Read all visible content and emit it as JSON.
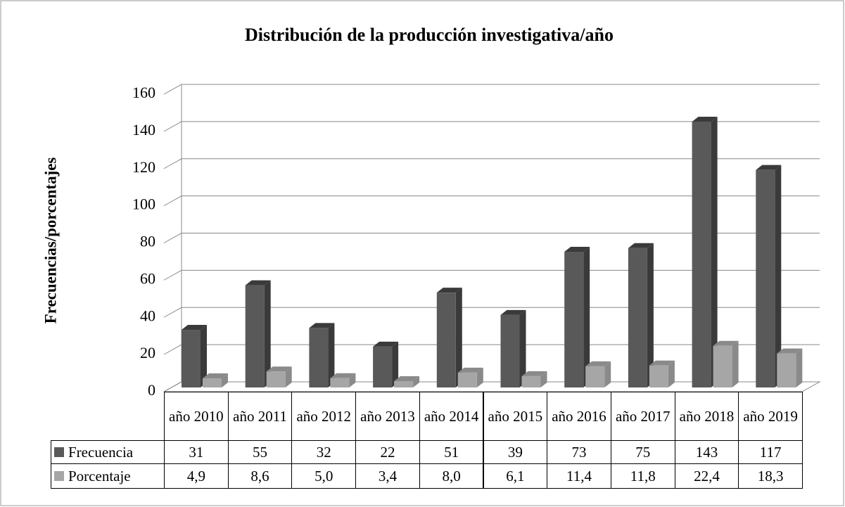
{
  "chart_data": {
    "type": "bar3d",
    "title": "Distribución de la producción investigativa/año",
    "y_label": "Frecuencias/porcentajes",
    "categories": [
      "año 2010",
      "año 2011",
      "año 2012",
      "año 2013",
      "año 2014",
      "año 2015",
      "año 2016",
      "año 2017",
      "año 2018",
      "año 2019"
    ],
    "series": [
      {
        "name": "Frecuencia",
        "color": "#595959",
        "values": [
          31,
          55,
          32,
          22,
          51,
          39,
          73,
          75,
          143,
          117
        ]
      },
      {
        "name": "Porcentaje",
        "color": "#a6a6a6",
        "values": [
          4.9,
          8.6,
          5.0,
          3.4,
          8.0,
          6.1,
          11.4,
          11.8,
          22.4,
          18.3
        ],
        "value_labels": [
          "4,9",
          "8,6",
          "5,0",
          "3,4",
          "8,0",
          "6,1",
          "11,4",
          "11,8",
          "22,4",
          "18,3"
        ]
      }
    ],
    "ylim": [
      0,
      160
    ],
    "yticks": [
      0,
      20,
      40,
      60,
      80,
      100,
      120,
      140,
      160
    ],
    "grid": true,
    "data_table": true
  }
}
